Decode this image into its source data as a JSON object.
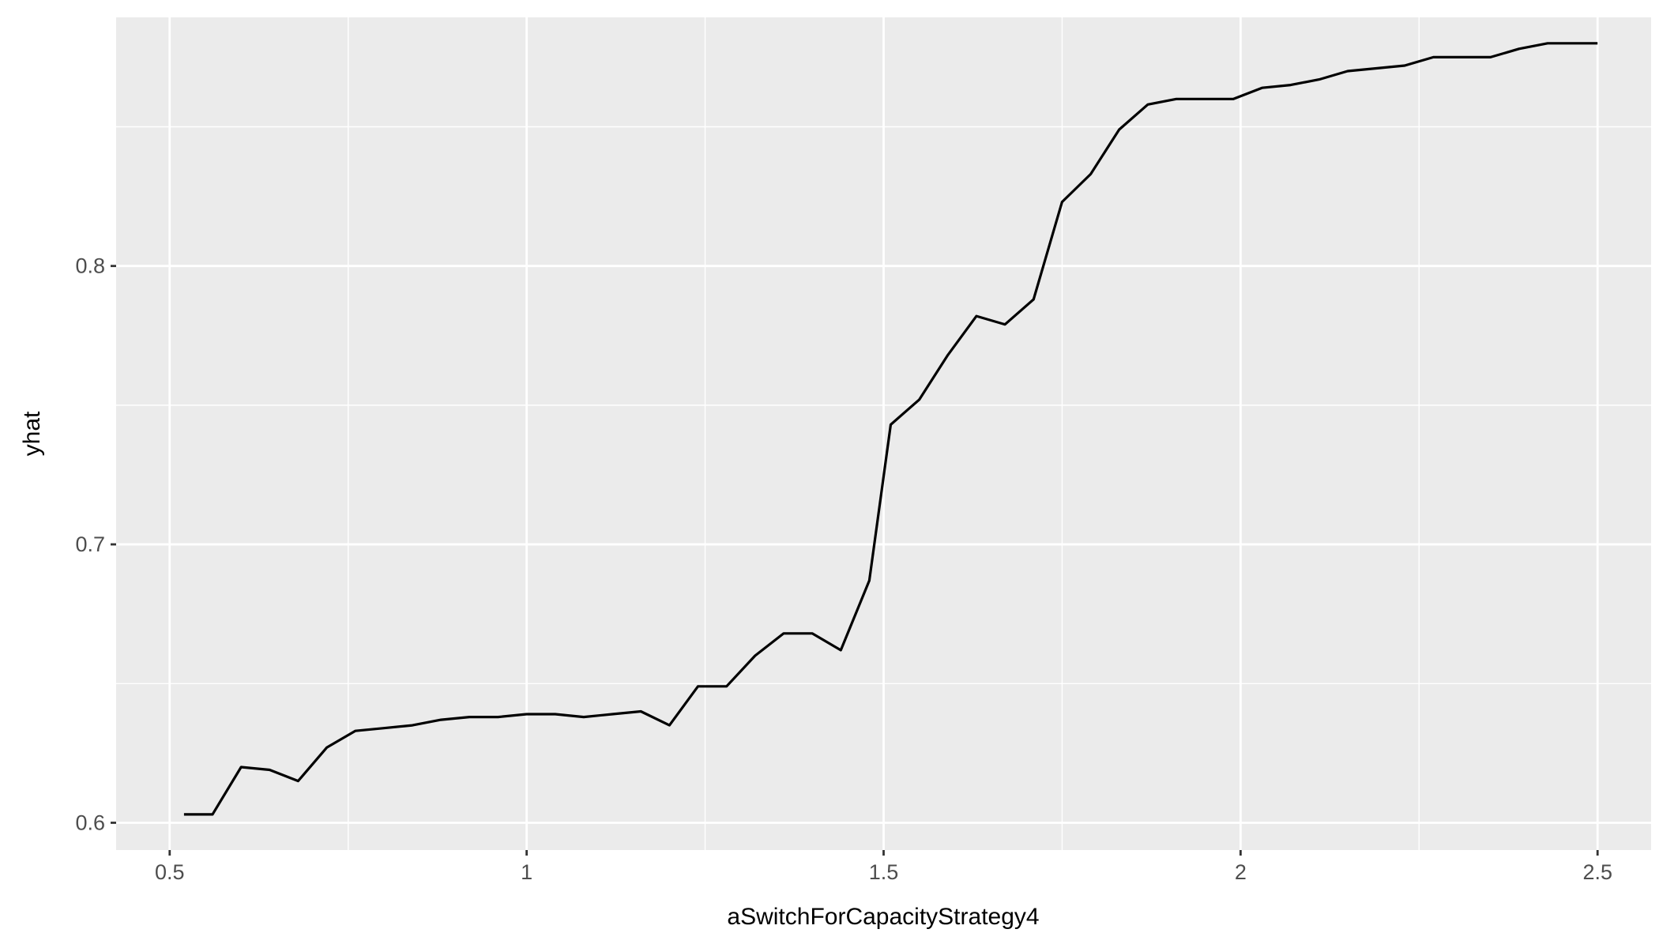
{
  "chart_data": {
    "type": "line",
    "title": "",
    "xlabel": "aSwitchForCapacityStrategy4",
    "ylabel": "yhat",
    "xlim": [
      0.425,
      2.575
    ],
    "ylim": [
      0.5902,
      0.8893
    ],
    "x_ticks": [
      0.5,
      1,
      1.5,
      2,
      2.5
    ],
    "x_tick_labels": [
      "0.5",
      "1",
      "1.5",
      "2",
      "2.5"
    ],
    "y_ticks": [
      0.6,
      0.7,
      0.8
    ],
    "y_tick_labels": [
      "0.6",
      "0.7",
      "0.8"
    ],
    "grid": true,
    "legend": "none",
    "colors": {
      "panel_bg": "#ebebeb",
      "grid": "#ffffff",
      "line": "#000000",
      "tick_text": "#4d4d4d",
      "axis_title": "#000000"
    },
    "series": [
      {
        "x": [
          0.52,
          0.56,
          0.6,
          0.64,
          0.68,
          0.72,
          0.76,
          0.8,
          0.84,
          0.88,
          0.92,
          0.96,
          1.0,
          1.04,
          1.08,
          1.12,
          1.16,
          1.2,
          1.24,
          1.28,
          1.32,
          1.36,
          1.4,
          1.44,
          1.48,
          1.51,
          1.55,
          1.59,
          1.63,
          1.67,
          1.71,
          1.75,
          1.79,
          1.83,
          1.87,
          1.91,
          1.95,
          1.99,
          2.03,
          2.07,
          2.11,
          2.15,
          2.19,
          2.23,
          2.27,
          2.31,
          2.35,
          2.39,
          2.43,
          2.47,
          2.5
        ],
        "y": [
          0.603,
          0.603,
          0.62,
          0.619,
          0.615,
          0.627,
          0.633,
          0.634,
          0.635,
          0.637,
          0.638,
          0.638,
          0.639,
          0.639,
          0.638,
          0.639,
          0.64,
          0.635,
          0.649,
          0.649,
          0.66,
          0.668,
          0.668,
          0.662,
          0.687,
          0.743,
          0.752,
          0.768,
          0.782,
          0.779,
          0.788,
          0.823,
          0.833,
          0.849,
          0.858,
          0.86,
          0.86,
          0.86,
          0.864,
          0.865,
          0.867,
          0.87,
          0.871,
          0.872,
          0.875,
          0.875,
          0.875,
          0.878,
          0.88,
          0.88,
          0.88
        ]
      }
    ]
  }
}
